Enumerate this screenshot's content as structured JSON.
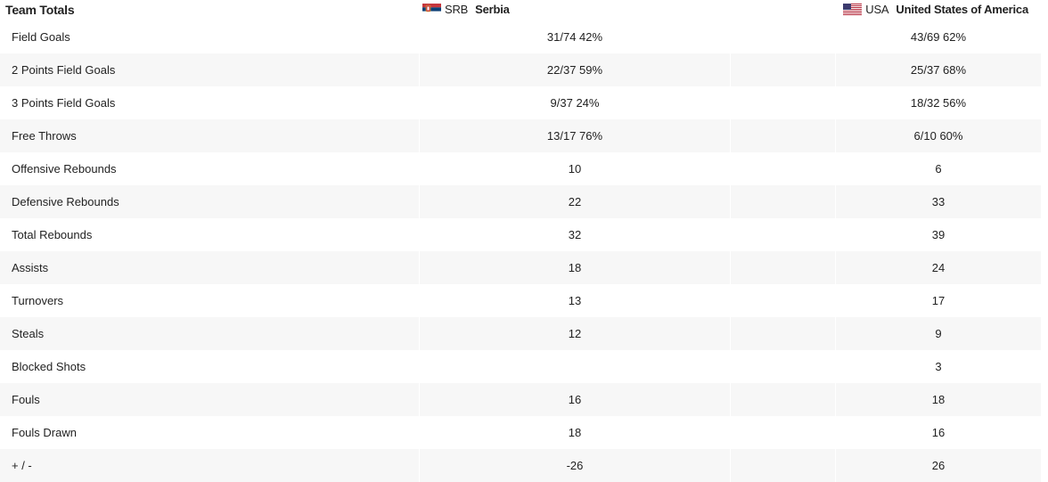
{
  "header": {
    "title": "Team Totals",
    "team1": {
      "code": "SRB",
      "name": "Serbia",
      "flag": "serbia-flag-icon"
    },
    "team2": {
      "code": "USA",
      "name": "United States of America",
      "flag": "usa-flag-icon"
    }
  },
  "colors": {
    "row_alt": "#f7f7f7",
    "text": "#222222"
  },
  "rows": [
    {
      "label": "Field Goals",
      "srb": "31/74 42%",
      "usa": "43/69 62%"
    },
    {
      "label": "2 Points Field Goals",
      "srb": "22/37 59%",
      "usa": "25/37 68%"
    },
    {
      "label": "3 Points Field Goals",
      "srb": "9/37 24%",
      "usa": "18/32 56%"
    },
    {
      "label": "Free Throws",
      "srb": "13/17 76%",
      "usa": "6/10 60%"
    },
    {
      "label": "Offensive Rebounds",
      "srb": "10",
      "usa": "6"
    },
    {
      "label": "Defensive Rebounds",
      "srb": "22",
      "usa": "33"
    },
    {
      "label": "Total Rebounds",
      "srb": "32",
      "usa": "39"
    },
    {
      "label": "Assists",
      "srb": "18",
      "usa": "24"
    },
    {
      "label": "Turnovers",
      "srb": "13",
      "usa": "17"
    },
    {
      "label": "Steals",
      "srb": "12",
      "usa": "9"
    },
    {
      "label": "Blocked Shots",
      "srb": "",
      "usa": "3"
    },
    {
      "label": "Fouls",
      "srb": "16",
      "usa": "18"
    },
    {
      "label": "Fouls Drawn",
      "srb": "18",
      "usa": "16"
    },
    {
      "label": "+ / -",
      "srb": "-26",
      "usa": "26"
    }
  ]
}
